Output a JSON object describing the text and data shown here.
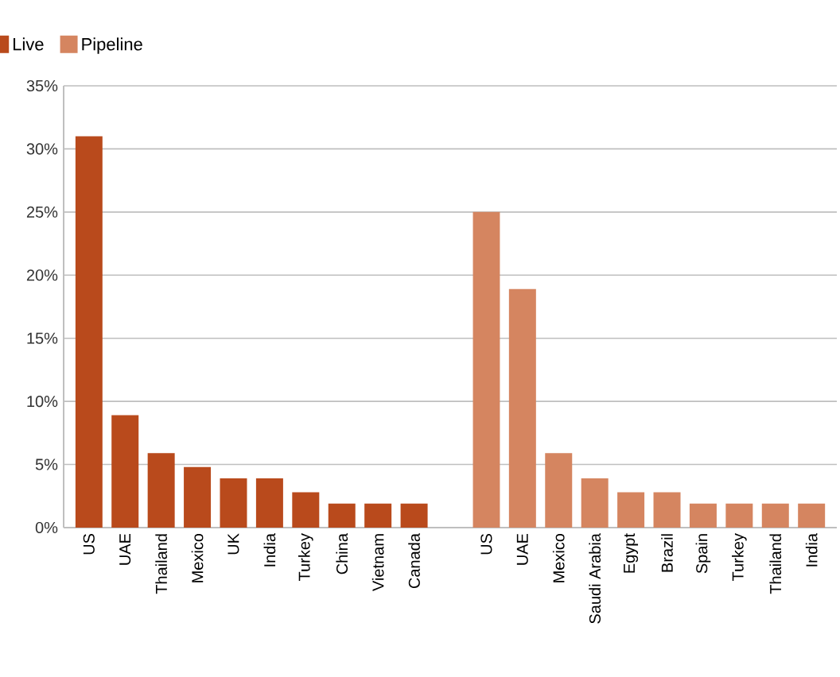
{
  "chart_data": {
    "type": "bar",
    "categories": [
      "US",
      "UAE",
      "Thailand",
      "Mexico",
      "UK",
      "India",
      "Turkey",
      "China",
      "Vietnam",
      "Canada",
      null,
      "US",
      "UAE",
      "Mexico",
      "Saudi Arabia",
      "Egypt",
      "Brazil",
      "Spain",
      "Turkey",
      "Thailand",
      "India"
    ],
    "series": [
      {
        "name": "Live",
        "color": "#b94a1c",
        "values": [
          31,
          8.9,
          5.9,
          4.8,
          3.9,
          3.9,
          2.8,
          1.9,
          1.9,
          1.9,
          null,
          null,
          null,
          null,
          null,
          null,
          null,
          null,
          null,
          null,
          null
        ]
      },
      {
        "name": "Pipeline",
        "color": "#d58560",
        "values": [
          null,
          null,
          null,
          null,
          null,
          null,
          null,
          null,
          null,
          null,
          null,
          25,
          18.9,
          5.9,
          3.9,
          2.8,
          2.8,
          1.9,
          1.9,
          1.9,
          1.9
        ]
      }
    ],
    "ylim": [
      0,
      35
    ],
    "yticks": [
      {
        "value": 0,
        "label": "0%"
      },
      {
        "value": 5,
        "label": "5%"
      },
      {
        "value": 10,
        "label": "10%"
      },
      {
        "value": 15,
        "label": "15%"
      },
      {
        "value": 20,
        "label": "20%"
      },
      {
        "value": 25,
        "label": "25%"
      },
      {
        "value": 30,
        "label": "30%"
      },
      {
        "value": 35,
        "label": "35%"
      }
    ],
    "grid": "y",
    "legend": "top left"
  }
}
